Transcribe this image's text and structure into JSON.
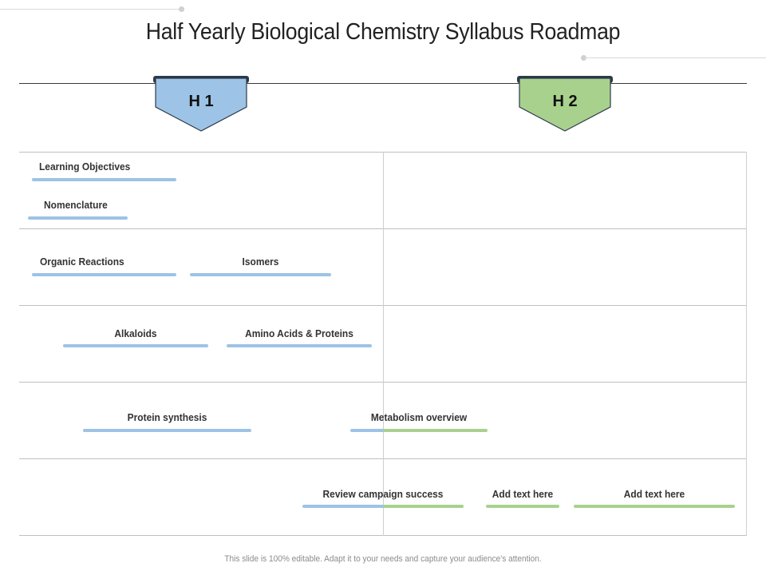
{
  "title": "Half Yearly Biological Chemistry Syllabus Roadmap",
  "periods": [
    {
      "label": "H 1",
      "color": "#9dc3e6"
    },
    {
      "label": "H 2",
      "color": "#a9d18e"
    }
  ],
  "tasks": [
    {
      "label": "Learning Objectives",
      "period": "H 1"
    },
    {
      "label": "Nomenclature",
      "period": "H 1"
    },
    {
      "label": "Organic Reactions",
      "period": "H 1"
    },
    {
      "label": "Isomers",
      "period": "H 1"
    },
    {
      "label": "Alkaloids",
      "period": "H 1"
    },
    {
      "label": "Amino Acids & Proteins",
      "period": "H 1"
    },
    {
      "label": "Protein synthesis",
      "period": "H 1"
    },
    {
      "label": "Metabolism overview",
      "period": "H 1 – H 2"
    },
    {
      "label": "Review campaign success",
      "period": "H 1 – H 2"
    },
    {
      "label": "Add text here",
      "period": "H 2"
    },
    {
      "label": "Add text here",
      "period": "H 2"
    }
  ],
  "footer": "This slide is 100% editable. Adapt it to your needs and capture your audience's attention."
}
